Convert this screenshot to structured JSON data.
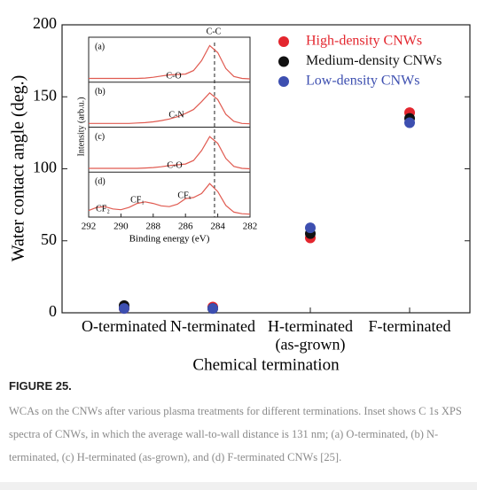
{
  "chart_data": [
    {
      "type": "scatter",
      "categories": [
        "O-terminated",
        "N-terminated",
        "H-terminated\n(as-grown)",
        "F-terminated"
      ],
      "series": [
        {
          "name": "High-density CNWs",
          "color": "#e3262e",
          "values": [
            3,
            4,
            52,
            139
          ]
        },
        {
          "name": "Medium-density CNWs",
          "color": "#111111",
          "values": [
            5,
            3,
            55,
            135
          ]
        },
        {
          "name": "Low-density CNWs",
          "color": "#3d4fb0",
          "values": [
            3,
            3,
            59,
            132
          ]
        }
      ],
      "ylabel": "Water contact angle (deg.)",
      "xlabel": "Chemical termination",
      "ylim": [
        0,
        200
      ],
      "yticks": [
        0,
        50,
        100,
        150,
        200
      ],
      "legend": "upper right"
    },
    {
      "type": "line",
      "xlabel": "Binding energy (eV)",
      "ylabel": "Intensity (arb.u.)",
      "xlim": [
        292,
        282
      ],
      "xticks": [
        292,
        290,
        288,
        286,
        284,
        282
      ],
      "ylim": [
        0,
        1
      ],
      "color": "#e05a50",
      "reference_line": 284.2,
      "x": [
        292,
        291.5,
        291,
        290.5,
        290,
        289.5,
        289,
        288.5,
        288,
        287.5,
        287,
        286.5,
        286,
        285.5,
        285,
        284.5,
        284,
        283.5,
        283,
        282.5,
        282
      ],
      "panels": [
        {
          "label": "(a)",
          "annotations": [
            "C-C",
            "C-O"
          ],
          "values": [
            0.05,
            0.05,
            0.05,
            0.05,
            0.05,
            0.05,
            0.05,
            0.06,
            0.08,
            0.11,
            0.14,
            0.15,
            0.16,
            0.25,
            0.5,
            0.88,
            0.7,
            0.3,
            0.1,
            0.05,
            0.04
          ]
        },
        {
          "label": "(b)",
          "annotations": [
            "C-N"
          ],
          "values": [
            0.05,
            0.05,
            0.05,
            0.05,
            0.05,
            0.05,
            0.06,
            0.07,
            0.09,
            0.12,
            0.16,
            0.22,
            0.3,
            0.4,
            0.6,
            0.82,
            0.65,
            0.28,
            0.1,
            0.05,
            0.04
          ]
        },
        {
          "label": "(c)",
          "annotations": [
            "C-O"
          ],
          "values": [
            0.05,
            0.05,
            0.05,
            0.05,
            0.05,
            0.05,
            0.05,
            0.06,
            0.07,
            0.09,
            0.12,
            0.14,
            0.16,
            0.25,
            0.5,
            0.85,
            0.68,
            0.3,
            0.1,
            0.05,
            0.04
          ]
        },
        {
          "label": "(d)",
          "annotations": [
            "CF₂",
            "CF₁",
            "CFₓ"
          ],
          "values": [
            0.12,
            0.2,
            0.22,
            0.16,
            0.14,
            0.2,
            0.3,
            0.34,
            0.3,
            0.24,
            0.22,
            0.28,
            0.42,
            0.45,
            0.55,
            0.8,
            0.6,
            0.25,
            0.08,
            0.04,
            0.03
          ]
        }
      ]
    }
  ],
  "figure_label": "FIGURE 25.",
  "caption": "WCAs on the CNWs after various plasma treatments for different terminations. Inset shows C 1s XPS spectra of CNWs, in which the average wall-to-wall distance is 131 nm; (a) O-terminated, (b) N-terminated, (c) H-terminated (as-grown), and (d) F-terminated CNWs [25]."
}
